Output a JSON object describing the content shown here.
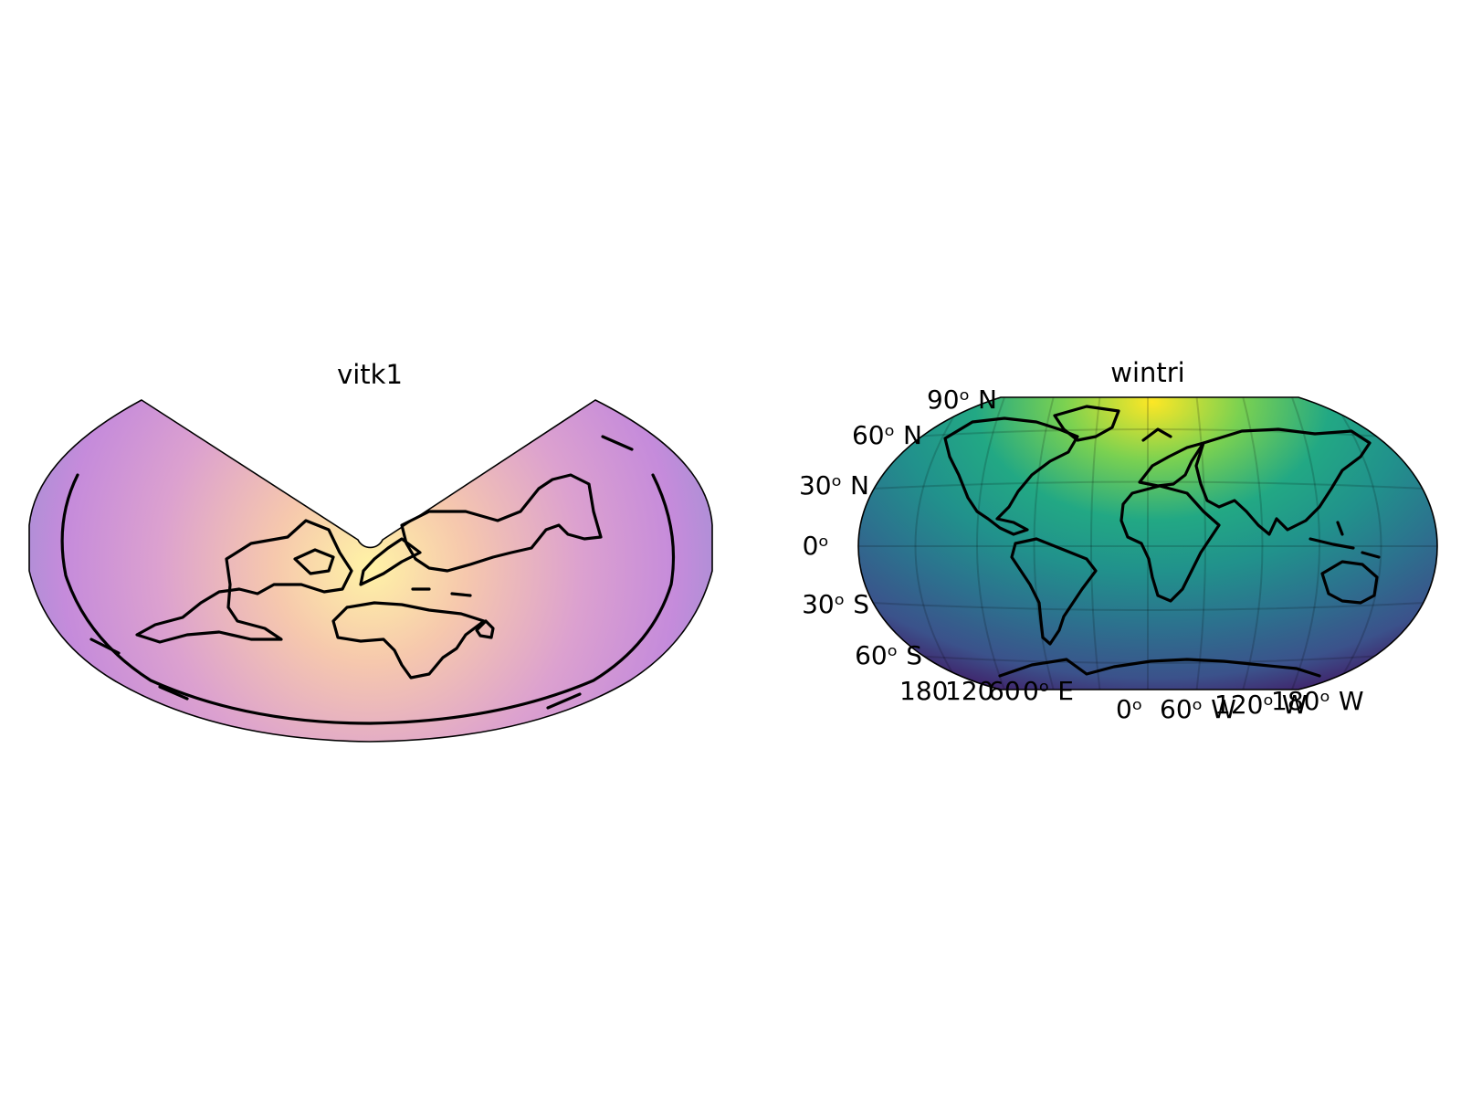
{
  "panels": [
    {
      "title": "vitk1",
      "projection": "Vitkovsky I conic",
      "colormap": "plasma (semi-transparent)"
    },
    {
      "title": "wintri",
      "projection": "Winkel Tripel",
      "colormap": "viridis",
      "gridlines": true,
      "lat_labels": [
        "90ᵒ N",
        "60ᵒ N",
        "30ᵒ N",
        "0ᵒ",
        "30ᵒ S",
        "60ᵒ S"
      ],
      "lon_labels_west_group": [
        "180",
        "120",
        "60",
        "0ᵒ E"
      ],
      "lon_labels_east_group": [
        "0ᵒ",
        "60ᵒ W",
        "120ᵒ W",
        "180ᵒ W"
      ]
    }
  ],
  "colors": {
    "plasma_center": "#fdf0a0",
    "plasma_mid": "#e9a8c0",
    "plasma_outer": "#c489d8",
    "plasma_edge": "#9b8fd2",
    "viridis_top": "#fde725",
    "viridis_mid": "#21918c",
    "viridis_low": "#3b528b",
    "viridis_bottom": "#440154"
  }
}
